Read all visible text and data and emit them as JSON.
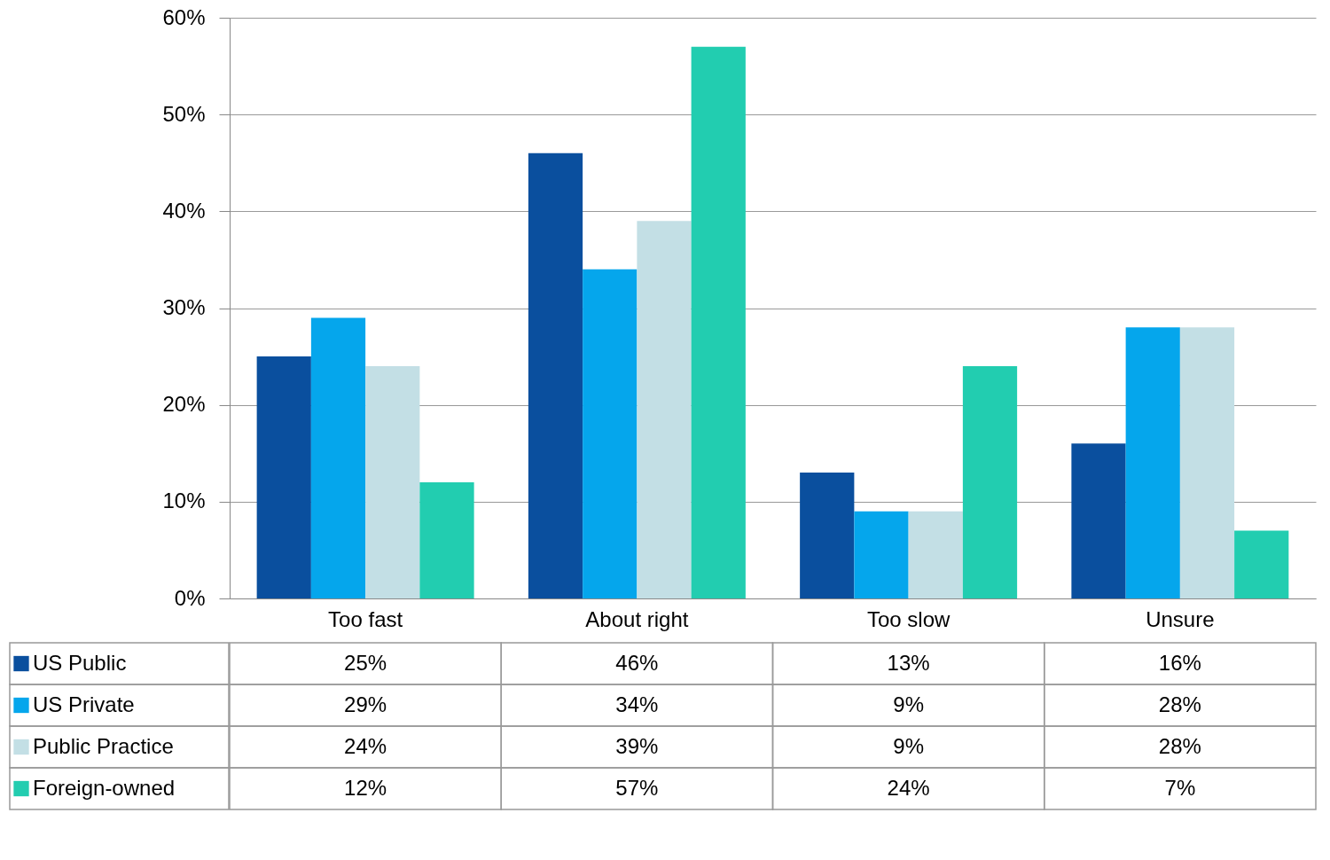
{
  "chart_data": {
    "type": "bar",
    "categories": [
      "Too fast",
      "About right",
      "Too slow",
      "Unsure"
    ],
    "series": [
      {
        "name": "US Public",
        "color": "#0a4f9e",
        "values": [
          25,
          46,
          13,
          16
        ],
        "value_labels": [
          "25%",
          "46%",
          "13%",
          "16%"
        ]
      },
      {
        "name": "US Private",
        "color": "#05a6ec",
        "values": [
          29,
          34,
          9,
          28
        ],
        "value_labels": [
          "29%",
          "34%",
          "9%",
          "28%"
        ]
      },
      {
        "name": "Public Practice",
        "color": "#c3dfe5",
        "values": [
          24,
          39,
          9,
          28
        ],
        "value_labels": [
          "24%",
          "39%",
          "9%",
          "28%"
        ]
      },
      {
        "name": "Foreign-owned",
        "color": "#22cdb0",
        "values": [
          12,
          57,
          24,
          7
        ],
        "value_labels": [
          "12%",
          "57%",
          "24%",
          "7%"
        ]
      }
    ],
    "ylim": [
      0,
      60
    ],
    "yticks": [
      {
        "value": 0,
        "label": "0%"
      },
      {
        "value": 10,
        "label": "10%"
      },
      {
        "value": 20,
        "label": "20%"
      },
      {
        "value": 30,
        "label": "30%"
      },
      {
        "value": 40,
        "label": "40%"
      },
      {
        "value": 50,
        "label": "50%"
      },
      {
        "value": 60,
        "label": "60%"
      }
    ],
    "grid": "y",
    "legend": "bottom"
  }
}
